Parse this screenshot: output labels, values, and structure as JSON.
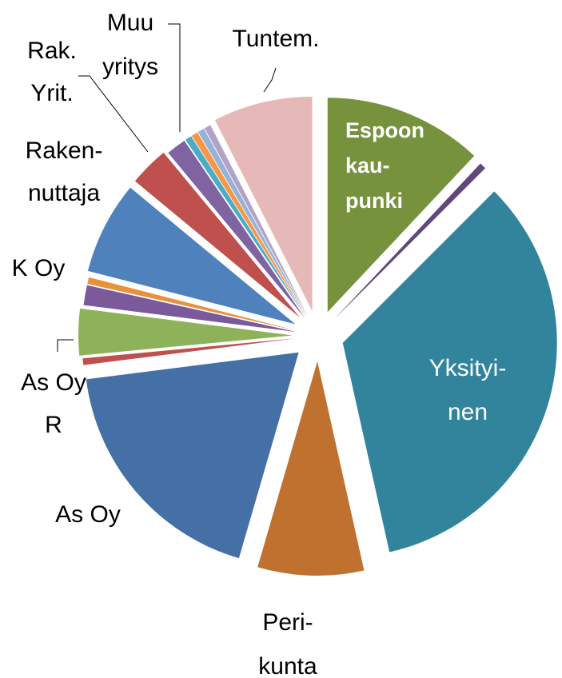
{
  "chart_data": {
    "type": "pie",
    "categories": [
      [
        "Espoon",
        "kau-",
        "punki"
      ],
      null,
      [
        "Yksityi-",
        "nen"
      ],
      [
        "Peri-",
        "kunta"
      ],
      [
        "As Oy"
      ],
      null,
      [
        "As Oy",
        "R"
      ],
      [
        "K Oy"
      ],
      null,
      [
        "Raken-",
        "nuttaja"
      ],
      [
        "Rak.",
        "Yrit."
      ],
      [
        "Muu",
        "yritys"
      ],
      null,
      null,
      null,
      null,
      [
        "Tuntem."
      ]
    ],
    "values": [
      12,
      0.5,
      34,
      8,
      18.5,
      0.5,
      3.5,
      1.5,
      0.5,
      7,
      3,
      1.5,
      0.5,
      0.5,
      0.5,
      0.5,
      7.5
    ],
    "colors": [
      "#76923c",
      "#5f497a",
      "#31849b",
      "#c0712f",
      "#4470a5",
      "#c0504d",
      "#8eb25a",
      "#7a5a9a",
      "#e8913c",
      "#4f81bd",
      "#c0504d",
      "#8064a2",
      "#4bacc6",
      "#f79646",
      "#95b3d7",
      "#b3a2c7",
      "#e6b9b8"
    ]
  }
}
